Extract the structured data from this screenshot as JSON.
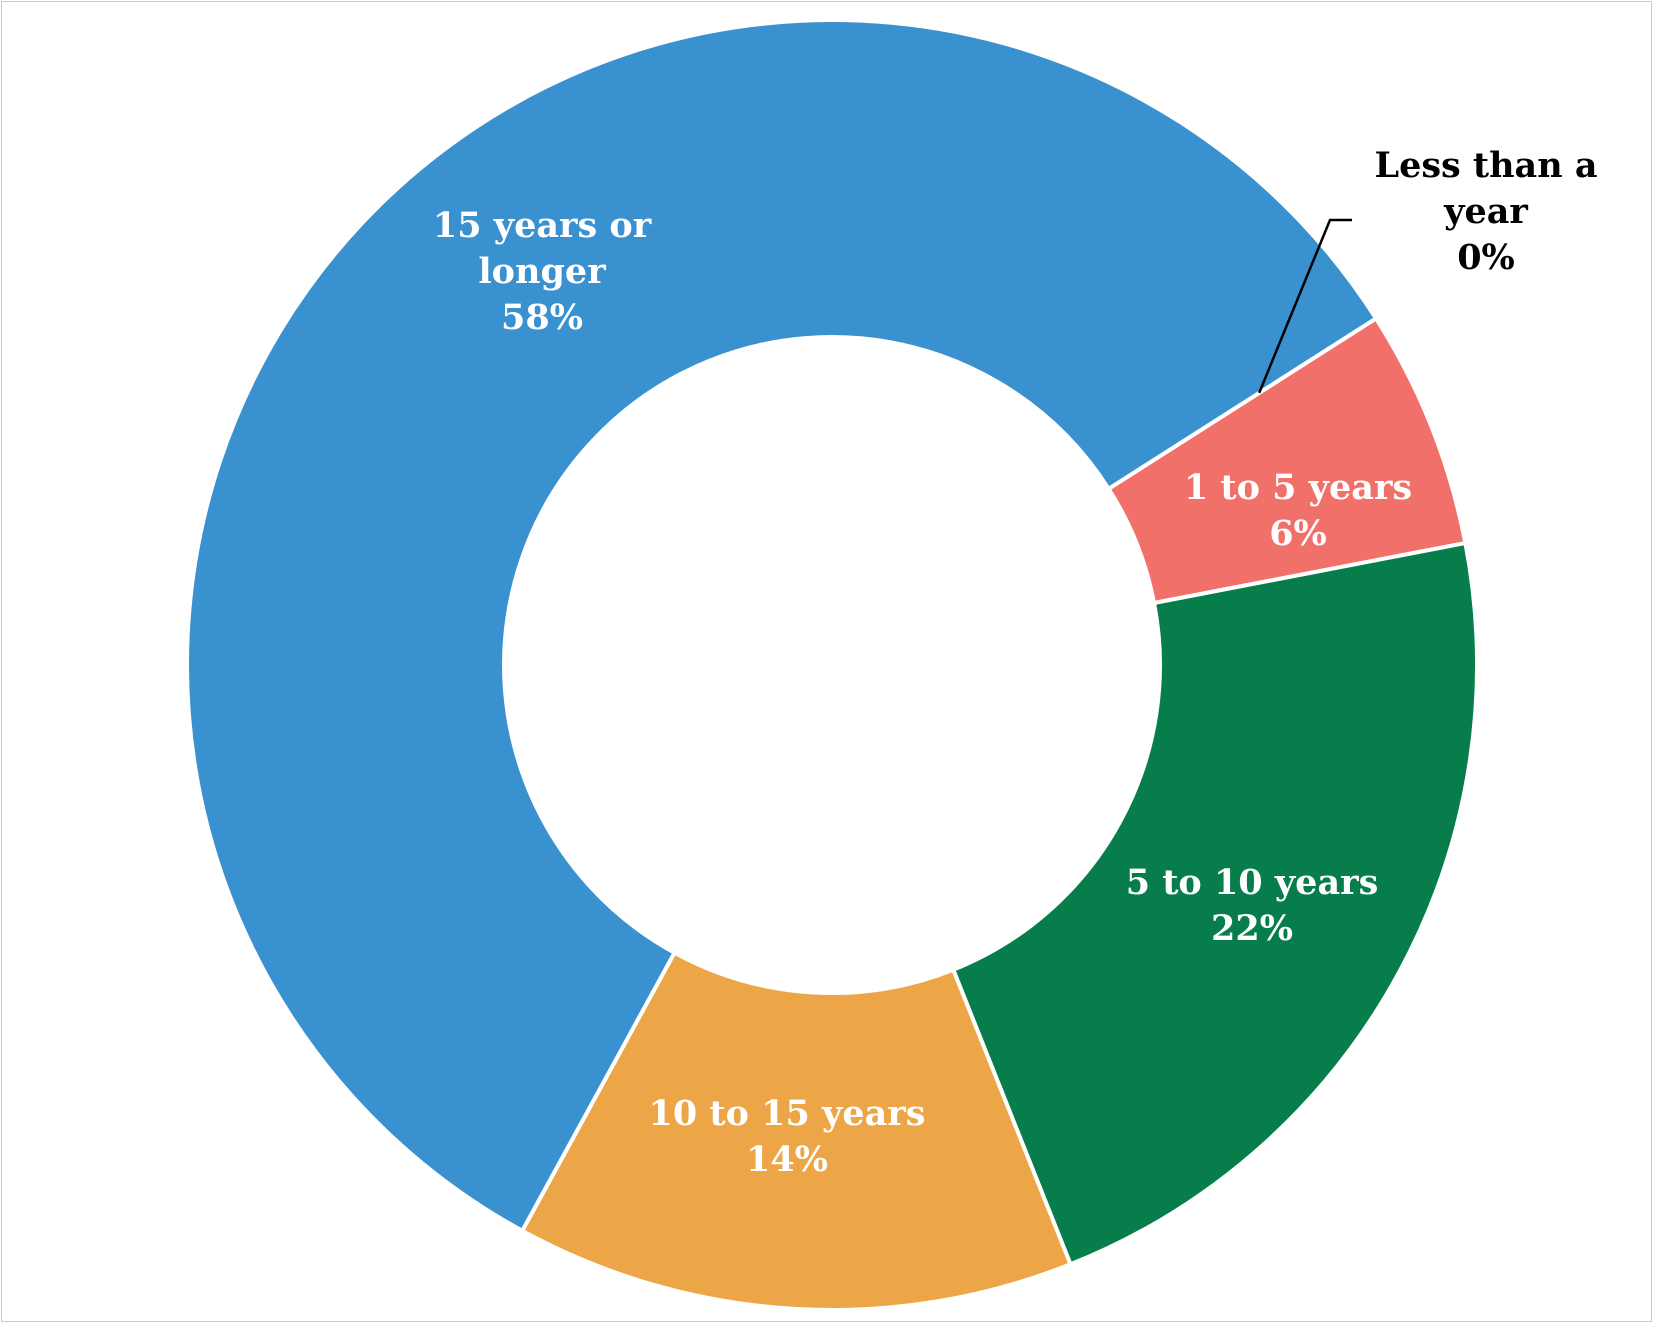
{
  "chart_data": {
    "type": "pie",
    "title": "",
    "donut": true,
    "legend": "none",
    "slices": [
      {
        "label_lines": [
          "Less than a",
          "year"
        ],
        "label": "Less than a year",
        "value": 0,
        "value_label": "0%",
        "color": "#3A91CF",
        "label_color": "#000000",
        "leader_line": true
      },
      {
        "label_lines": [
          "1 to 5 years"
        ],
        "label": "1 to 5 years",
        "value": 6,
        "value_label": "6%",
        "color": "#F2706A",
        "label_color": "#FFFFFF"
      },
      {
        "label_lines": [
          "5 to 10 years"
        ],
        "label": "5 to 10 years",
        "value": 22,
        "value_label": "22%",
        "color": "#067D4A",
        "label_color": "#FFFFFF"
      },
      {
        "label_lines": [
          "10 to 15 years"
        ],
        "label": "10 to 15 years",
        "value": 14,
        "value_label": "14%",
        "color": "#EDA647",
        "label_color": "#FFFFFF"
      },
      {
        "label_lines": [
          "15 years or",
          "longer"
        ],
        "label": "15 years or longer",
        "value": 58,
        "value_label": "58%",
        "color": "#3A91CF",
        "label_color": "#FFFFFF"
      }
    ]
  }
}
